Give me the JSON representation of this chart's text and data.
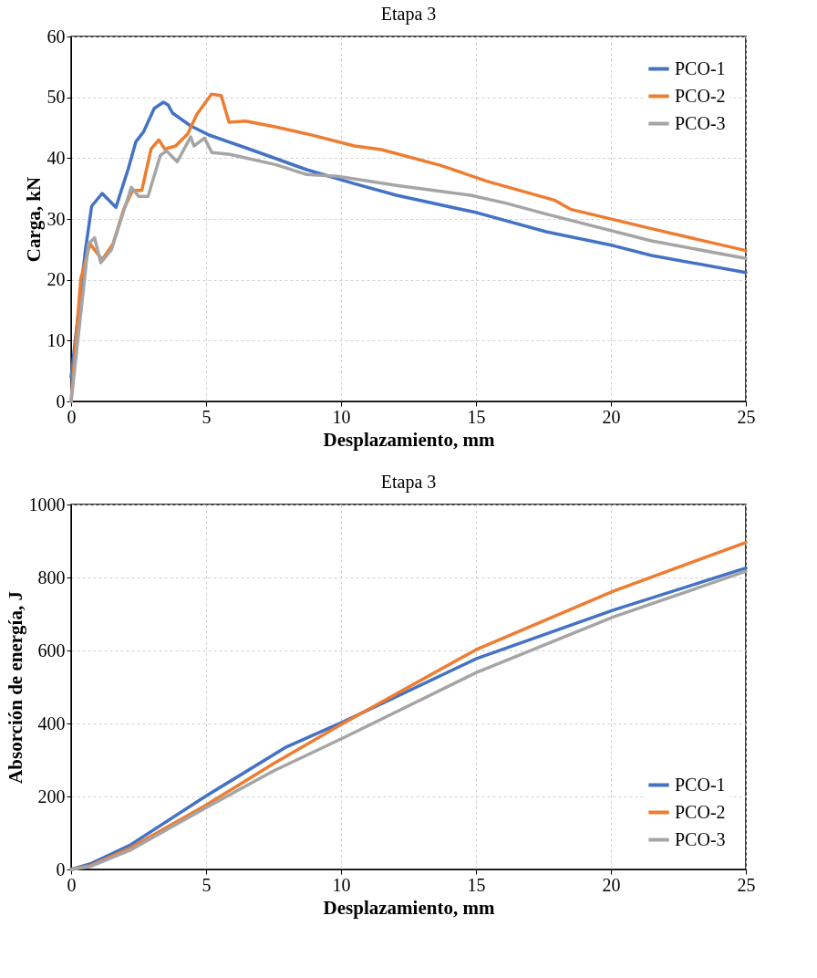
{
  "chart_data": [
    {
      "type": "line",
      "title": "Etapa 3",
      "xlabel": "Desplazamiento, mm",
      "ylabel": "Carga, kN",
      "xlim": [
        0,
        25
      ],
      "ylim": [
        0,
        60
      ],
      "xticks": [
        0,
        5,
        10,
        15,
        20,
        25
      ],
      "yticks": [
        0,
        10,
        20,
        30,
        40,
        50,
        60
      ],
      "grid": true,
      "legend": "top right",
      "series": [
        {
          "name": "PCO-1",
          "color": "#4472c4",
          "x": [
            0,
            0.53,
            0.76,
            1.15,
            1.66,
            2.12,
            2.4,
            2.68,
            3.08,
            3.42,
            3.6,
            3.76,
            4.43,
            5.11,
            6.47,
            7.6,
            8.73,
            10.5,
            12.05,
            15.06,
            17.6,
            20.1,
            21.5,
            25
          ],
          "values": [
            4,
            24.9,
            32.1,
            34.2,
            31.9,
            38.3,
            42.7,
            44.3,
            48.2,
            49.2,
            48.7,
            47.4,
            45.3,
            43.8,
            41.7,
            39.9,
            38.1,
            35.8,
            33.9,
            31.0,
            27.9,
            25.6,
            24.0,
            21.2
          ]
        },
        {
          "name": "PCO-2",
          "color": "#ed7d31",
          "x": [
            0,
            0.36,
            0.7,
            1.15,
            1.55,
            1.95,
            2.28,
            2.62,
            2.96,
            3.25,
            3.47,
            3.87,
            4.32,
            4.66,
            5.2,
            5.56,
            5.85,
            6.47,
            7.6,
            8.73,
            10.5,
            11.5,
            13.7,
            15.4,
            17.9,
            18.5,
            21.5,
            25
          ],
          "values": [
            0,
            20.2,
            25.9,
            23.3,
            25.9,
            31.6,
            34.7,
            34.7,
            41.5,
            43.0,
            41.5,
            42.0,
            44.0,
            47.2,
            50.5,
            50.3,
            45.9,
            46.1,
            45.1,
            44.0,
            42.0,
            41.4,
            38.8,
            36.2,
            33.1,
            31.6,
            28.4,
            24.8
          ]
        },
        {
          "name": "PCO-3",
          "color": "#a5a5a5",
          "x": [
            0,
            0.64,
            0.87,
            1.1,
            1.49,
            2.23,
            2.51,
            2.85,
            3.3,
            3.53,
            3.93,
            4.43,
            4.55,
            4.94,
            5.22,
            5.9,
            7.6,
            8.73,
            9.87,
            12.05,
            14.8,
            16.1,
            17.6,
            21.5,
            25
          ],
          "values": [
            0,
            25.9,
            26.9,
            22.8,
            24.9,
            35.2,
            33.7,
            33.7,
            40.4,
            41.2,
            39.4,
            43.5,
            42.0,
            43.3,
            40.9,
            40.6,
            38.9,
            37.3,
            37.0,
            35.5,
            33.9,
            32.6,
            30.8,
            26.4,
            23.5
          ]
        }
      ]
    },
    {
      "type": "line",
      "title": "Etapa 3",
      "xlabel": "Desplazamiento, mm",
      "ylabel": "Absorción de energía, J",
      "xlim": [
        0,
        25
      ],
      "ylim": [
        0,
        1000
      ],
      "xticks": [
        0,
        5,
        10,
        15,
        20,
        25
      ],
      "yticks": [
        0,
        200,
        400,
        600,
        800,
        1000
      ],
      "grid": true,
      "legend": "bottom right",
      "series": [
        {
          "name": "PCO-1",
          "color": "#4472c4",
          "x": [
            0,
            0.7,
            2.17,
            4.97,
            7.93,
            10.07,
            15,
            20.1,
            25
          ],
          "values": [
            0,
            15,
            66,
            200,
            334,
            404,
            577,
            711,
            826
          ]
        },
        {
          "name": "PCO-2",
          "color": "#ed7d31",
          "x": [
            0,
            0.7,
            2.17,
            4.97,
            7.5,
            10.07,
            15,
            20.1,
            25
          ],
          "values": [
            0,
            10,
            58,
            175,
            290,
            400,
            602,
            763,
            896
          ]
        },
        {
          "name": "PCO-3",
          "color": "#a5a5a5",
          "x": [
            0,
            0.7,
            2.17,
            4.97,
            7.5,
            10.07,
            15,
            20.1,
            25
          ],
          "values": [
            0,
            8,
            52,
            168,
            270,
            360,
            539,
            692,
            817
          ]
        }
      ]
    }
  ]
}
